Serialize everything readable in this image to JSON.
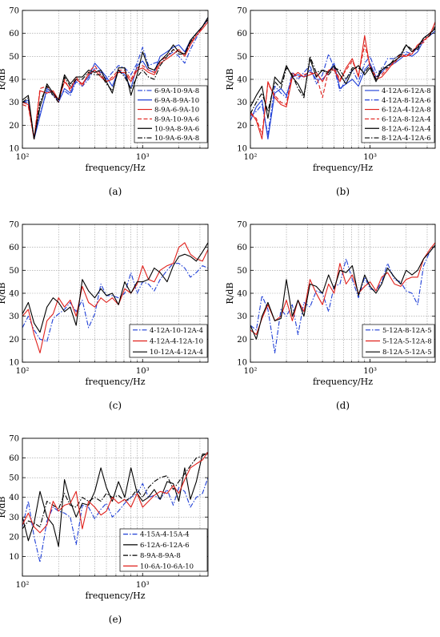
{
  "chart_data": [
    {
      "type": "line",
      "panel_label": "(a)",
      "xlabel": "frequency/Hz",
      "ylabel": "R/dB",
      "xscale": "log",
      "xlim": [
        100,
        3500
      ],
      "ylim": [
        10,
        70
      ],
      "yticks": [
        10,
        20,
        30,
        40,
        50,
        60,
        70
      ],
      "xtick_labels": [
        "10²",
        "10³"
      ],
      "grid": true,
      "legend": "bottom-right",
      "x": [
        100,
        112,
        125,
        140,
        160,
        180,
        200,
        224,
        250,
        280,
        315,
        355,
        400,
        450,
        500,
        560,
        630,
        710,
        800,
        900,
        1000,
        1120,
        1250,
        1400,
        1600,
        1800,
        2000,
        2240,
        2500,
        2800,
        3150,
        3500
      ],
      "series": [
        {
          "name": "6-9A-10-9A-8",
          "color": "#1f3fd6",
          "dash": "6,2,1.5,2",
          "values": [
            30,
            30,
            14,
            25,
            35,
            33,
            31,
            35,
            33,
            39,
            37,
            40,
            45,
            43,
            40,
            43,
            46,
            45,
            42,
            47,
            54,
            46,
            47,
            48,
            50,
            52,
            50,
            47,
            53,
            58,
            63,
            66
          ]
        },
        {
          "name": "6-9A-8-9A-10",
          "color": "#1f3fd6",
          "dash": "",
          "values": [
            30,
            31,
            14,
            24,
            36,
            34,
            30,
            36,
            34,
            40,
            38,
            41,
            47,
            44,
            41,
            37,
            44,
            42,
            36,
            46,
            48,
            44,
            43,
            50,
            52,
            54,
            55,
            52,
            57,
            60,
            63,
            67
          ]
        },
        {
          "name": "8-9A-6-9A-10",
          "color": "#e0201b",
          "dash": "",
          "values": [
            30,
            29,
            14,
            35,
            34,
            35,
            31,
            39,
            36,
            40,
            38,
            42,
            44,
            41,
            39,
            40,
            43,
            43,
            39,
            44,
            45,
            43,
            42,
            47,
            49,
            51,
            53,
            50,
            55,
            59,
            62,
            65
          ]
        },
        {
          "name": "8-9A-10-9A-6",
          "color": "#e0201b",
          "dash": "5,2.5",
          "values": [
            29,
            28,
            14,
            36,
            37,
            34,
            30,
            40,
            35,
            41,
            37,
            43,
            46,
            42,
            39,
            41,
            44,
            44,
            40,
            45,
            46,
            44,
            43,
            48,
            50,
            53,
            52,
            51,
            56,
            59,
            63,
            66
          ]
        },
        {
          "name": "10-9A-8-9A-6",
          "color": "#000000",
          "dash": "",
          "values": [
            31,
            33,
            14,
            28,
            38,
            34,
            31,
            42,
            38,
            41,
            41,
            44,
            43,
            44,
            39,
            34,
            45,
            45,
            33,
            42,
            52,
            45,
            44,
            48,
            51,
            55,
            52,
            51,
            57,
            60,
            63,
            67
          ]
        },
        {
          "name": "10-9A-6-9A-8",
          "color": "#000000",
          "dash": "6,2,1.5,2",
          "values": [
            30,
            32,
            14,
            30,
            37,
            33,
            30,
            41,
            37,
            40,
            40,
            43,
            42,
            42,
            38,
            35,
            44,
            41,
            36,
            41,
            44,
            41,
            40,
            46,
            50,
            53,
            51,
            51,
            56,
            60,
            63,
            66
          ]
        }
      ]
    },
    {
      "type": "line",
      "panel_label": "(b)",
      "xlabel": "frequency/Hz",
      "ylabel": "R/dB",
      "xscale": "log",
      "xlim": [
        100,
        3500
      ],
      "ylim": [
        10,
        70
      ],
      "yticks": [
        10,
        20,
        30,
        40,
        50,
        60,
        70
      ],
      "xtick_labels": [
        "10²",
        "10³"
      ],
      "grid": true,
      "legend": "bottom-right",
      "x": [
        100,
        112,
        125,
        140,
        160,
        180,
        200,
        224,
        250,
        280,
        315,
        355,
        400,
        450,
        500,
        560,
        630,
        710,
        800,
        900,
        1000,
        1120,
        1250,
        1400,
        1600,
        1800,
        2000,
        2240,
        2500,
        2800,
        3150,
        3500
      ],
      "series": [
        {
          "name": "4-12A-6-12A-8",
          "color": "#1f3fd6",
          "dash": "",
          "values": [
            22,
            28,
            31,
            14,
            34,
            36,
            33,
            41,
            42,
            41,
            44,
            40,
            40,
            43,
            47,
            36,
            38,
            40,
            37,
            44,
            47,
            41,
            43,
            46,
            47,
            49,
            51,
            50,
            52,
            57,
            59,
            61
          ]
        },
        {
          "name": "4-12A-8-12A-6",
          "color": "#1f3fd6",
          "dash": "6,2,1.5,2",
          "values": [
            24,
            26,
            29,
            16,
            37,
            34,
            32,
            43,
            40,
            43,
            46,
            38,
            42,
            51,
            45,
            35,
            40,
            44,
            39,
            47,
            50,
            43,
            44,
            49,
            49,
            51,
            52,
            51,
            54,
            58,
            60,
            62
          ]
        },
        {
          "name": "6-12A-4-12A-8",
          "color": "#e0201b",
          "dash": "",
          "values": [
            26,
            22,
            14,
            39,
            32,
            29,
            28,
            41,
            43,
            41,
            42,
            43,
            39,
            44,
            44,
            39,
            45,
            49,
            41,
            59,
            45,
            40,
            41,
            44,
            48,
            50,
            50,
            51,
            55,
            57,
            59,
            65
          ]
        },
        {
          "name": "6-12A-8-12A-4",
          "color": "#e0201b",
          "dash": "5,2.5",
          "values": [
            25,
            23,
            16,
            38,
            33,
            30,
            29,
            43,
            41,
            42,
            43,
            42,
            32,
            44,
            45,
            40,
            44,
            48,
            42,
            55,
            46,
            41,
            42,
            45,
            47,
            51,
            50,
            52,
            55,
            56,
            60,
            64
          ]
        },
        {
          "name": "8-12A-6-12A-4",
          "color": "#000000",
          "dash": "",
          "values": [
            28,
            33,
            37,
            23,
            41,
            38,
            46,
            41,
            38,
            33,
            49,
            41,
            44,
            43,
            46,
            42,
            38,
            44,
            46,
            42,
            45,
            39,
            44,
            46,
            48,
            50,
            55,
            52,
            54,
            58,
            60,
            62
          ]
        },
        {
          "name": "8-12A-4-12A-6",
          "color": "#000000",
          "dash": "6,2,1.5,2",
          "values": [
            25,
            30,
            34,
            26,
            39,
            36,
            45,
            42,
            36,
            32,
            50,
            43,
            44,
            42,
            45,
            44,
            40,
            45,
            45,
            43,
            46,
            40,
            45,
            45,
            49,
            51,
            55,
            53,
            53,
            58,
            59,
            63
          ]
        }
      ]
    },
    {
      "type": "line",
      "panel_label": "(c)",
      "xlabel": "frequency/Hz",
      "ylabel": "R/dB",
      "xscale": "log",
      "xlim": [
        100,
        3500
      ],
      "ylim": [
        10,
        70
      ],
      "yticks": [
        10,
        20,
        30,
        40,
        50,
        60,
        70
      ],
      "xtick_labels": [
        "10²",
        "10³"
      ],
      "grid": true,
      "legend": "bottom-right",
      "x": [
        100,
        112,
        125,
        140,
        160,
        180,
        200,
        224,
        250,
        280,
        315,
        355,
        400,
        450,
        500,
        560,
        630,
        710,
        800,
        900,
        1000,
        1120,
        1250,
        1400,
        1600,
        1800,
        2000,
        2240,
        2500,
        2800,
        3150,
        3500
      ],
      "series": [
        {
          "name": "4-12A-10-12A-4",
          "color": "#1f3fd6",
          "dash": "6,2,1.5,2",
          "values": [
            25,
            30,
            24,
            20,
            19,
            29,
            31,
            33,
            36,
            32,
            37,
            25,
            31,
            44,
            39,
            39,
            38,
            40,
            49,
            40,
            45,
            44,
            41,
            46,
            50,
            53,
            53,
            51,
            47,
            49,
            52,
            51
          ]
        },
        {
          "name": "4-12A-4-12A-10",
          "color": "#e0201b",
          "dash": "",
          "values": [
            30,
            33,
            22,
            14,
            28,
            31,
            38,
            34,
            37,
            30,
            43,
            36,
            34,
            38,
            36,
            38,
            35,
            42,
            40,
            44,
            52,
            46,
            45,
            50,
            52,
            53,
            60,
            62,
            57,
            55,
            54,
            59
          ]
        },
        {
          "name": "10-12A-4-12A-4",
          "color": "#000000",
          "dash": "",
          "values": [
            31,
            36,
            27,
            23,
            34,
            38,
            36,
            32,
            34,
            26,
            46,
            41,
            38,
            42,
            39,
            40,
            35,
            45,
            40,
            45,
            45,
            46,
            51,
            49,
            45,
            52,
            56,
            57,
            56,
            54,
            58,
            62
          ]
        }
      ]
    },
    {
      "type": "line",
      "panel_label": "(d)",
      "xlabel": "frequency/Hz",
      "ylabel": "R/dB",
      "xscale": "log",
      "xlim": [
        100,
        3500
      ],
      "ylim": [
        10,
        70
      ],
      "yticks": [
        10,
        20,
        30,
        40,
        50,
        60,
        70
      ],
      "xtick_labels": [
        "10²",
        "10³"
      ],
      "grid": true,
      "legend": "bottom-right",
      "x": [
        100,
        112,
        125,
        140,
        160,
        180,
        200,
        224,
        250,
        280,
        315,
        355,
        400,
        450,
        500,
        560,
        630,
        710,
        800,
        900,
        1000,
        1120,
        1250,
        1400,
        1600,
        1800,
        2000,
        2240,
        2500,
        2800,
        3150,
        3500
      ],
      "series": [
        {
          "name": "5-12A-8-12A-5",
          "color": "#1f3fd6",
          "dash": "6,2,1.5,2",
          "values": [
            26,
            24,
            39,
            33,
            14,
            33,
            30,
            35,
            22,
            36,
            34,
            41,
            40,
            32,
            43,
            44,
            55,
            46,
            38,
            47,
            42,
            41,
            45,
            53,
            46,
            45,
            41,
            40,
            35,
            52,
            58,
            61
          ]
        },
        {
          "name": "5-12A-5-12A-8",
          "color": "#e0201b",
          "dash": "",
          "values": [
            24,
            22,
            29,
            35,
            28,
            30,
            37,
            28,
            37,
            32,
            46,
            40,
            35,
            44,
            40,
            53,
            44,
            48,
            40,
            43,
            45,
            41,
            47,
            49,
            44,
            43,
            46,
            47,
            47,
            55,
            59,
            62
          ]
        },
        {
          "name": "8-12A-5-12A-5",
          "color": "#000000",
          "dash": "",
          "values": [
            26,
            20,
            30,
            36,
            28,
            29,
            46,
            30,
            37,
            30,
            44,
            43,
            40,
            48,
            42,
            50,
            49,
            52,
            39,
            48,
            43,
            40,
            44,
            51,
            47,
            44,
            50,
            48,
            50,
            55,
            58,
            61
          ]
        }
      ]
    },
    {
      "type": "line",
      "panel_label": "(e)",
      "xlabel": "frequency/Hz",
      "ylabel": "R/dB",
      "xscale": "log",
      "xlim": [
        100,
        3500
      ],
      "ylim": [
        0,
        70
      ],
      "yticks": [
        10,
        20,
        30,
        40,
        50,
        60,
        70
      ],
      "xtick_labels": [
        "10²",
        "10³"
      ],
      "grid": true,
      "legend": "bottom-right",
      "x": [
        100,
        112,
        125,
        140,
        160,
        180,
        200,
        224,
        250,
        280,
        315,
        355,
        400,
        450,
        500,
        560,
        630,
        710,
        800,
        900,
        1000,
        1120,
        1250,
        1400,
        1600,
        1800,
        2000,
        2240,
        2500,
        2800,
        3150,
        3500
      ],
      "series": [
        {
          "name": "4-15A-4-15A-4",
          "color": "#1f3fd6",
          "dash": "6,2,1.5,2",
          "values": [
            25,
            38,
            20,
            7,
            28,
            35,
            33,
            32,
            30,
            16,
            36,
            35,
            29,
            34,
            37,
            30,
            33,
            37,
            40,
            42,
            47,
            40,
            41,
            39,
            44,
            36,
            45,
            43,
            35,
            40,
            42,
            50
          ]
        },
        {
          "name": "6-12A-6-12A-6",
          "color": "#000000",
          "dash": "",
          "values": [
            30,
            18,
            27,
            43,
            30,
            26,
            15,
            49,
            38,
            30,
            37,
            36,
            43,
            55,
            45,
            38,
            48,
            40,
            55,
            42,
            38,
            40,
            44,
            39,
            48,
            47,
            38,
            55,
            39,
            48,
            62,
            62
          ]
        },
        {
          "name": "8-9A-8-9A-8",
          "color": "#000000",
          "dash": "6,2,1.5,2",
          "values": [
            24,
            28,
            27,
            25,
            38,
            36,
            34,
            42,
            36,
            35,
            40,
            38,
            40,
            38,
            42,
            40,
            41,
            38,
            40,
            44,
            40,
            45,
            48,
            50,
            51,
            44,
            48,
            52,
            56,
            60,
            61,
            63
          ]
        },
        {
          "name": "10-6A-10-6A-10",
          "color": "#e0201b",
          "dash": "",
          "values": [
            26,
            32,
            25,
            22,
            26,
            38,
            33,
            36,
            37,
            43,
            24,
            38,
            35,
            31,
            33,
            40,
            37,
            39,
            35,
            42,
            35,
            38,
            41,
            43,
            42,
            46,
            42,
            49,
            55,
            57,
            59,
            63
          ]
        }
      ]
    }
  ]
}
